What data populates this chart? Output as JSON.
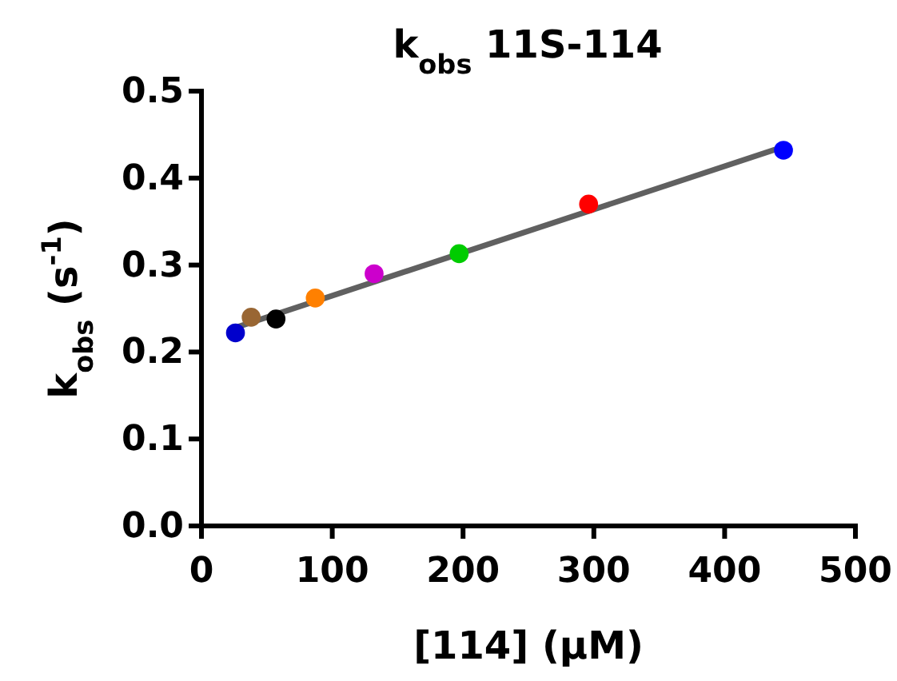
{
  "chart_data": {
    "type": "scatter",
    "title": "k$_{obs}$ 11S-114",
    "xlabel": "[114] (μM)",
    "ylabel": "k$_{obs}$ (s$^{-1}$)",
    "xlim": [
      0,
      500
    ],
    "xticks": [
      0,
      100,
      200,
      300,
      400,
      500
    ],
    "ylim": [
      0,
      0.5
    ],
    "yticks": [
      {
        "value": 0,
        "label": "0.0"
      },
      0.1,
      0.2,
      0.3,
      0.4,
      0.5
    ],
    "grid": false,
    "marker": "circle",
    "series": [
      {
        "type": "line",
        "color": "#606060",
        "x": [
          26,
          445
        ],
        "values": [
          0.228,
          0.436
        ],
        "marker": "none",
        "line_style": "solid"
      },
      {
        "x": [
          26,
          38,
          57,
          87,
          132,
          197,
          296,
          445
        ],
        "values": [
          0.222,
          0.24,
          0.238,
          0.262,
          0.29,
          0.313,
          0.37,
          0.432
        ],
        "colors": [
          "#0000cc",
          "#996633",
          "#000000",
          "#ff8000",
          "#cc00cc",
          "#00cc00",
          "#ff0000",
          "#0000ff"
        ]
      }
    ]
  }
}
